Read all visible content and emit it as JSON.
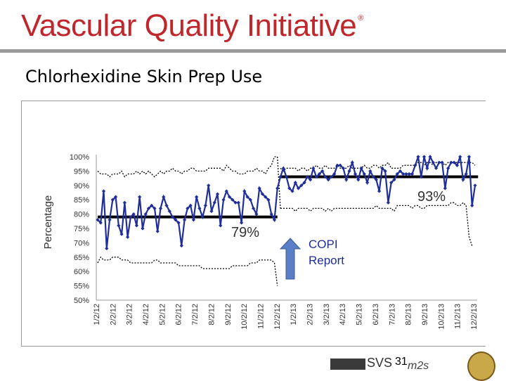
{
  "header": {
    "title": "Vascular Quality Initiative",
    "mark": "®"
  },
  "slide": {
    "title": "Chlorhexidine Skin Prep Use",
    "page_number": "31"
  },
  "footer": {
    "svs_label": "SVS",
    "m2s_label": "m2s"
  },
  "chart_data": {
    "type": "line",
    "ylabel": "Percentage",
    "ylim": [
      50,
      100
    ],
    "y_ticks": [
      "100%",
      "95%",
      "90%",
      "85%",
      "80%",
      "75%",
      "70%",
      "65%",
      "60%",
      "55%",
      "50%"
    ],
    "x_ticks": [
      "1/2/12",
      "2/2/12",
      "3/2/12",
      "4/2/12",
      "5/2/12",
      "6/2/12",
      "7/2/12",
      "8/2/12",
      "9/2/12",
      "10/2/12",
      "11/2/12",
      "12/2/12",
      "1/2/13",
      "2/2/13",
      "3/2/13",
      "4/2/13",
      "5/2/13",
      "6/2/13",
      "7/2/13",
      "8/2/13",
      "9/2/13",
      "10/2/13",
      "11/2/13",
      "12/2/13"
    ],
    "annotations": {
      "mean_before": "79%",
      "mean_after": "93%",
      "intervention": "COPI Report"
    },
    "phases": [
      {
        "center_line": 79,
        "start_week": 0,
        "end_week": 60
      },
      {
        "center_line": 93,
        "start_week": 61,
        "end_week": 127
      }
    ],
    "colors": {
      "series": "#1f2e9a",
      "center_line": "#000000",
      "limits": "#000000",
      "arrow": "#5b7fc7",
      "arrow_stroke": "#3a5a9a"
    },
    "series": [
      {
        "values": [
          78,
          77,
          88,
          68,
          78,
          85,
          86,
          76,
          73,
          84,
          72,
          79,
          80,
          76,
          86,
          75,
          80,
          82,
          83,
          82,
          74,
          82,
          86,
          83,
          81,
          79,
          78,
          77,
          69,
          78,
          82,
          83,
          78,
          86,
          82,
          79,
          83,
          90,
          81,
          84,
          87,
          76,
          85,
          88,
          86,
          85,
          84,
          84,
          77,
          88,
          86,
          85,
          82,
          80,
          89,
          87,
          86,
          85,
          80,
          78,
          89,
          93,
          96,
          93,
          89,
          88,
          91,
          89,
          90,
          91,
          93,
          92,
          96,
          93,
          94,
          95,
          93,
          92,
          93,
          94,
          97,
          97,
          96,
          92,
          95,
          98,
          94,
          92,
          96,
          94,
          91,
          95,
          93,
          92,
          88,
          96,
          95,
          84,
          91,
          92,
          94,
          95,
          94,
          94,
          94,
          94,
          97,
          100,
          93,
          100,
          96,
          100,
          98,
          96,
          98,
          98,
          89,
          96,
          98,
          98,
          97,
          100,
          92,
          94,
          100,
          83,
          90
        ],
        "upper_limit": [
          95,
          94,
          94,
          94,
          93,
          94,
          94,
          94,
          95,
          93,
          94,
          94,
          94,
          95,
          94,
          95,
          94,
          95,
          94,
          93,
          94,
          95,
          94,
          95,
          95,
          96,
          95,
          95,
          94,
          95,
          95,
          96,
          96,
          95,
          95,
          95,
          95,
          96,
          96,
          96,
          96,
          96,
          95,
          97,
          96,
          95,
          95,
          94,
          94,
          94,
          95,
          95,
          95,
          96,
          95,
          95,
          94,
          96,
          97,
          100,
          100,
          96,
          95,
          96,
          96,
          96,
          96,
          95,
          96,
          96,
          95,
          96,
          96,
          97,
          96,
          96,
          97,
          96,
          96,
          96,
          97,
          96,
          96,
          96,
          97,
          96,
          96,
          96,
          96,
          97,
          96,
          96,
          97,
          97,
          96,
          97,
          97,
          98,
          96,
          96,
          96,
          96,
          97,
          97,
          97,
          97,
          97,
          98,
          98,
          97,
          98,
          98,
          97,
          98,
          98,
          98,
          97,
          98,
          98,
          98,
          98,
          98,
          98,
          98,
          98,
          98,
          97
        ],
        "lower_limit": [
          63,
          65,
          64,
          64,
          64,
          65,
          65,
          65,
          64,
          64,
          64,
          63,
          63,
          63,
          63,
          63,
          63,
          63,
          63,
          64,
          64,
          63,
          63,
          63,
          63,
          63,
          63,
          62,
          62,
          62,
          62,
          62,
          62,
          62,
          62,
          61,
          61,
          61,
          61,
          61,
          61,
          61,
          61,
          61,
          61,
          62,
          62,
          62,
          62,
          62,
          62,
          63,
          63,
          63,
          64,
          64,
          64,
          64,
          64,
          63,
          55,
          82,
          82,
          82,
          82,
          82,
          81,
          82,
          82,
          82,
          82,
          81,
          82,
          82,
          82,
          82,
          81,
          82,
          81,
          82,
          82,
          82,
          82,
          82,
          82,
          82,
          82,
          82,
          82,
          82,
          82,
          82,
          82,
          83,
          82,
          82,
          82,
          82,
          82,
          81,
          83,
          83,
          83,
          83,
          83,
          82,
          83,
          83,
          82,
          82,
          83,
          83,
          83,
          83,
          83,
          83,
          83,
          83,
          84,
          84,
          83,
          83,
          84,
          83,
          72,
          69
        ]
      }
    ]
  }
}
